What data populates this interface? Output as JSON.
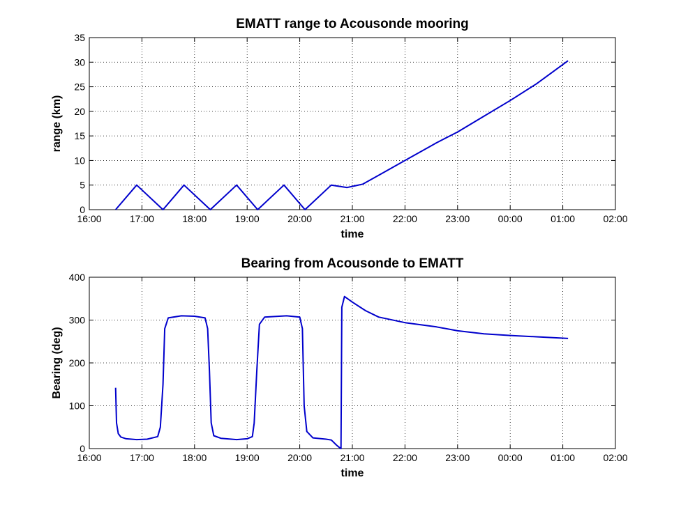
{
  "chart_data": [
    {
      "type": "line",
      "title": "EMATT range to Acousonde mooring",
      "xlabel": "time",
      "ylabel": "range (km)",
      "xlim": [
        "16:00",
        "02:00"
      ],
      "ylim": [
        0,
        35
      ],
      "x_ticks": [
        "16:00",
        "17:00",
        "18:00",
        "19:00",
        "20:00",
        "21:00",
        "22:00",
        "23:00",
        "00:00",
        "01:00",
        "02:00"
      ],
      "y_ticks": [
        0,
        5,
        10,
        15,
        20,
        25,
        30,
        35
      ],
      "grid": true,
      "color": "#0000cc",
      "series": [
        {
          "x": [
            "16:30",
            "16:54",
            "17:24",
            "17:48",
            "18:18",
            "18:48",
            "19:12",
            "19:42",
            "20:06",
            "20:36",
            "20:54",
            "21:12",
            "21:30",
            "22:00",
            "22:30",
            "22:36",
            "23:00",
            "23:30",
            "00:00",
            "00:30",
            "01:06"
          ],
          "y": [
            0,
            5,
            0,
            5,
            0,
            5,
            0,
            5,
            0,
            5,
            4.5,
            5.2,
            7,
            10,
            13,
            13.6,
            15.8,
            19,
            22.2,
            25.6,
            30.3
          ]
        }
      ]
    },
    {
      "type": "line",
      "title": "Bearing from Acousonde to EMATT",
      "xlabel": "time",
      "ylabel": "Bearing (deg)",
      "xlim": [
        "16:00",
        "02:00"
      ],
      "ylim": [
        0,
        400
      ],
      "x_ticks": [
        "16:00",
        "17:00",
        "18:00",
        "19:00",
        "20:00",
        "21:00",
        "22:00",
        "23:00",
        "00:00",
        "01:00",
        "02:00"
      ],
      "y_ticks": [
        0,
        100,
        200,
        300,
        400
      ],
      "grid": true,
      "color": "#0000cc",
      "series": [
        {
          "x": [
            "16:30",
            "16:31",
            "16:33",
            "16:36",
            "16:42",
            "16:54",
            "17:06",
            "17:18",
            "17:21",
            "17:24",
            "17:26",
            "17:30",
            "17:45",
            "18:00",
            "18:12",
            "18:15",
            "18:17",
            "18:19",
            "18:22",
            "18:30",
            "18:48",
            "19:00",
            "19:06",
            "19:08",
            "19:11",
            "19:14",
            "19:20",
            "19:45",
            "20:00",
            "20:03",
            "20:05",
            "20:08",
            "20:15",
            "20:30",
            "20:36",
            "20:39",
            "20:42",
            "20:45",
            "20:47",
            "20:48",
            "20:51",
            "21:00",
            "21:15",
            "21:30",
            "22:00",
            "22:36",
            "23:00",
            "23:30",
            "00:00",
            "00:30",
            "01:06"
          ],
          "y": [
            142,
            60,
            35,
            27,
            23,
            21,
            22,
            28,
            50,
            150,
            280,
            305,
            310,
            309,
            305,
            280,
            180,
            60,
            30,
            24,
            21,
            23,
            28,
            60,
            180,
            290,
            307,
            310,
            307,
            280,
            100,
            40,
            25,
            22,
            20,
            14,
            8,
            3,
            0,
            330,
            355,
            342,
            322,
            307,
            294,
            284,
            275,
            268,
            264,
            261,
            257
          ]
        }
      ]
    }
  ]
}
